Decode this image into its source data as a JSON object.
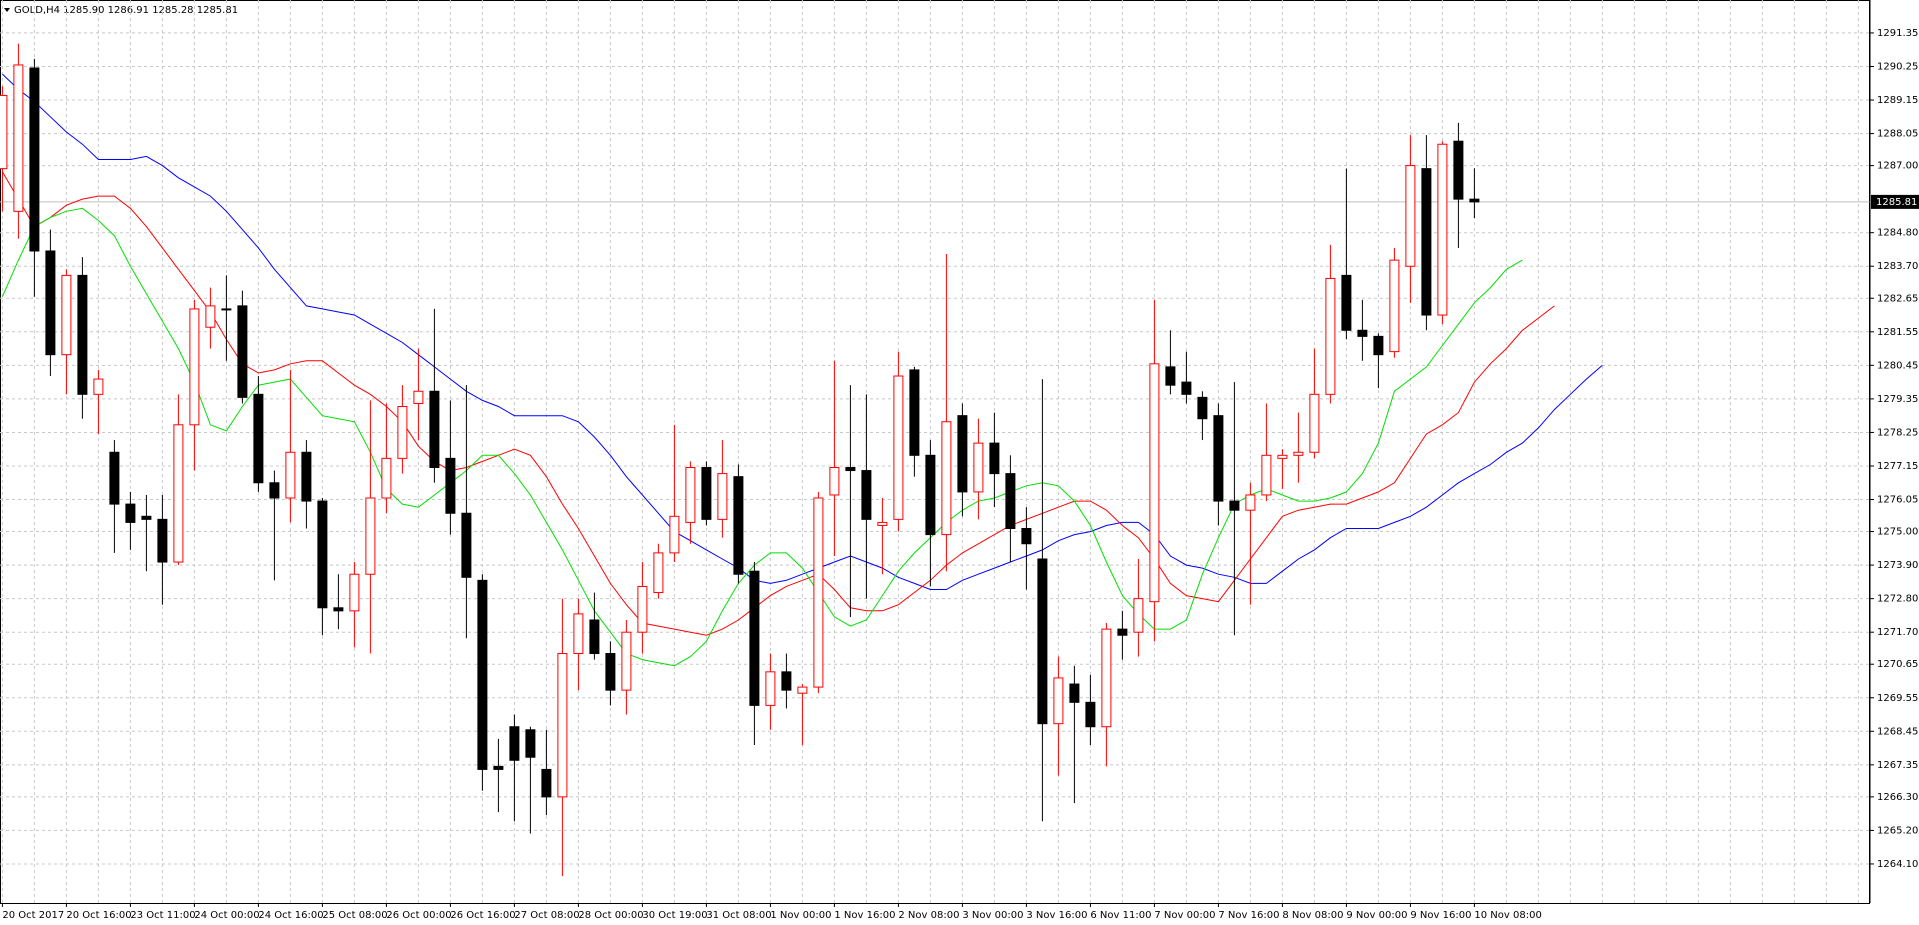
{
  "chart_data": {
    "type": "candlestick",
    "title": "GOLD,H4 1285.90 1286.91 1285.28 1285.81",
    "categories": [
      "20 Oct 2017",
      null,
      null,
      null,
      "20 Oct 16:00",
      null,
      null,
      null,
      "23 Oct 11:00",
      null,
      null,
      null,
      "24 Oct 00:00",
      null,
      null,
      null,
      "24 Oct 16:00",
      null,
      null,
      null,
      "25 Oct 08:00",
      null,
      null,
      null,
      "26 Oct 00:00",
      null,
      null,
      null,
      "26 Oct 16:00",
      null,
      null,
      null,
      "27 Oct 08:00",
      null,
      null,
      null,
      "28 Oct 00:00",
      null,
      null,
      null,
      "30 Oct 19:00",
      null,
      null,
      null,
      "31 Oct 08:00",
      null,
      null,
      null,
      "1 Nov 00:00",
      null,
      null,
      null,
      "1 Nov 16:00",
      null,
      null,
      null,
      "2 Nov 08:00",
      null,
      null,
      null,
      "3 Nov 00:00",
      null,
      null,
      null,
      "3 Nov 16:00",
      null,
      null,
      null,
      "6 Nov 11:00",
      null,
      null,
      null,
      "7 Nov 00:00",
      null,
      null,
      null,
      "7 Nov 16:00",
      null,
      null,
      null,
      "8 Nov 08:00",
      null,
      null,
      null,
      "9 Nov 00:00",
      null,
      null,
      null,
      "9 Nov 16:00",
      null,
      null,
      null,
      "10 Nov 08:00",
      null,
      null,
      null,
      null,
      null,
      null,
      null,
      null
    ],
    "open": [
      1286.9,
      1285.5,
      1290.2,
      1284.2,
      1280.8,
      1283.4,
      1279.5,
      1277.6,
      1275.9,
      1275.5,
      1275.4,
      1274.0,
      1278.5,
      1281.7,
      1282.3,
      1282.4,
      1279.5,
      1276.6,
      1276.1,
      1277.6,
      1276.0,
      1272.5,
      1272.4,
      1273.6,
      1276.1,
      1277.4,
      1279.2,
      1279.6,
      1277.4,
      1275.6,
      1273.4,
      1267.3,
      1268.6,
      1268.5,
      1267.2,
      1266.3,
      1271.0,
      1272.1,
      1271.0,
      1269.8,
      1271.7,
      1273.0,
      1274.3,
      1275.3,
      1277.1,
      1275.4,
      1276.8,
      1273.7,
      1269.3,
      1270.4,
      1269.7,
      1269.9,
      1276.2,
      1277.1,
      1277.0,
      1275.2,
      1275.4,
      1280.3,
      1277.5,
      1274.9,
      1278.8,
      1276.3,
      1277.9,
      1276.9,
      1275.1,
      1274.1,
      1268.7,
      1270.0,
      1269.4,
      1268.6,
      1271.8,
      1271.7,
      1272.7,
      1280.4,
      1279.9,
      1279.4,
      1278.8,
      1276.0,
      1275.7,
      1276.2,
      1277.4,
      1277.5,
      1277.6,
      1279.5,
      1283.4,
      1281.6,
      1281.4,
      1280.9,
      1283.7,
      1286.9,
      1282.1,
      1287.8,
      1285.9,
      null,
      null,
      null,
      null,
      null,
      null,
      null,
      null
    ],
    "high": [
      1289.6,
      1291.0,
      1290.5,
      1284.9,
      1283.6,
      1284.0,
      1280.3,
      1278.0,
      1276.3,
      1276.2,
      1276.2,
      1279.5,
      1282.6,
      1283.0,
      1283.4,
      1282.9,
      1280.1,
      1277.0,
      1280.3,
      1278.0,
      1276.1,
      1273.6,
      1274.0,
      1279.3,
      1279.2,
      1279.8,
      1281.0,
      1282.3,
      1279.3,
      1279.8,
      1273.6,
      1268.2,
      1269.0,
      1268.6,
      1268.5,
      1272.8,
      1272.8,
      1273.0,
      1271.4,
      1272.1,
      1274.0,
      1274.6,
      1278.5,
      1277.3,
      1277.3,
      1278.0,
      1277.2,
      1274.0,
      1271.0,
      1271.0,
      1270.0,
      1276.3,
      1280.6,
      1279.8,
      1279.5,
      1276.1,
      1280.9,
      1280.4,
      1278.0,
      1284.1,
      1279.2,
      1278.7,
      1278.9,
      1277.5,
      1275.8,
      1280.0,
      1270.9,
      1270.6,
      1270.3,
      1272.0,
      1272.4,
      1274.1,
      1282.6,
      1281.6,
      1280.9,
      1279.6,
      1279.2,
      1279.9,
      1276.6,
      1279.2,
      1277.7,
      1278.9,
      1281.0,
      1284.4,
      1286.9,
      1282.6,
      1281.5,
      1284.3,
      1288.0,
      1288.0,
      1287.8,
      1288.4,
      1286.91,
      null,
      null,
      null,
      null,
      null,
      null,
      null,
      null
    ],
    "low": [
      1285.5,
      1284.6,
      1282.7,
      1280.1,
      1279.5,
      1278.7,
      1278.2,
      1274.3,
      1274.4,
      1273.7,
      1272.6,
      1273.9,
      1277.0,
      1281.0,
      1280.6,
      1279.2,
      1276.3,
      1273.4,
      1275.3,
      1275.1,
      1271.6,
      1271.8,
      1271.2,
      1271.0,
      1275.6,
      1276.9,
      1278.0,
      1276.6,
      1274.9,
      1271.5,
      1266.5,
      1265.8,
      1265.5,
      1265.1,
      1265.7,
      1263.7,
      1269.8,
      1270.8,
      1269.3,
      1269.0,
      1271.0,
      1272.8,
      1274.0,
      1274.6,
      1275.2,
      1274.8,
      1273.3,
      1268.0,
      1268.5,
      1269.2,
      1268.0,
      1269.7,
      1274.2,
      1272.2,
      1272.8,
      1273.6,
      1275.0,
      1276.8,
      1273.2,
      1273.7,
      1275.5,
      1275.4,
      1275.8,
      1274.0,
      1273.1,
      1265.5,
      1267.0,
      1266.1,
      1268.0,
      1267.3,
      1270.8,
      1270.9,
      1271.4,
      1279.5,
      1279.2,
      1278.0,
      1275.2,
      1271.6,
      1272.6,
      1276.0,
      1276.4,
      1276.6,
      1277.4,
      1279.2,
      1281.3,
      1280.6,
      1279.7,
      1280.7,
      1282.5,
      1281.6,
      1281.8,
      1284.3,
      1285.28,
      null,
      null,
      null,
      null,
      null,
      null,
      null,
      null
    ],
    "close": [
      1289.3,
      1290.3,
      1284.2,
      1280.8,
      1283.4,
      1279.5,
      1280.0,
      1275.9,
      1275.3,
      1275.4,
      1274.0,
      1278.5,
      1282.3,
      1282.4,
      1282.3,
      1279.4,
      1276.6,
      1276.1,
      1277.6,
      1276.0,
      1272.5,
      1272.4,
      1273.6,
      1276.1,
      1277.4,
      1279.1,
      1279.6,
      1277.1,
      1275.6,
      1273.5,
      1267.2,
      1267.2,
      1267.5,
      1267.6,
      1266.3,
      1271.0,
      1272.3,
      1271.0,
      1269.8,
      1271.7,
      1273.2,
      1274.3,
      1275.5,
      1277.1,
      1275.4,
      1276.9,
      1273.6,
      1269.3,
      1270.4,
      1269.8,
      1269.9,
      1276.1,
      1277.1,
      1277.0,
      1275.4,
      1275.3,
      1280.1,
      1277.5,
      1274.9,
      1278.6,
      1276.3,
      1277.9,
      1276.9,
      1275.1,
      1274.6,
      1268.7,
      1270.2,
      1269.4,
      1268.6,
      1271.8,
      1271.6,
      1272.8,
      1280.5,
      1279.8,
      1279.5,
      1278.7,
      1276.0,
      1275.7,
      1276.2,
      1277.5,
      1277.5,
      1277.6,
      1279.5,
      1283.3,
      1281.6,
      1281.4,
      1280.8,
      1283.9,
      1287.0,
      1282.1,
      1287.7,
      1285.9,
      1285.81,
      null,
      null,
      null,
      null,
      null,
      null,
      null,
      null
    ],
    "up_color": "#ff0000",
    "down_color": "#000000",
    "series": [
      {
        "color": "#0000ff",
        "values": [
          1290.0,
          1289.5,
          1289.1,
          1288.6,
          1288.1,
          1287.7,
          1287.2,
          1287.2,
          1287.2,
          1287.3,
          1287.0,
          1286.6,
          1286.3,
          1286.0,
          1285.5,
          1284.9,
          1284.3,
          1283.6,
          1283.0,
          1282.4,
          1282.3,
          1282.2,
          1282.1,
          1281.8,
          1281.5,
          1281.2,
          1280.8,
          1280.4,
          1280.0,
          1279.6,
          1279.3,
          1279.1,
          1278.8,
          1278.8,
          1278.8,
          1278.8,
          1278.6,
          1278.1,
          1277.5,
          1276.8,
          1276.2,
          1275.6,
          1275.0,
          1274.7,
          1274.4,
          1274.1,
          1273.8,
          1273.4,
          1273.3,
          1273.4,
          1273.6,
          1273.8,
          1274.0,
          1274.2,
          1274.0,
          1273.8,
          1273.5,
          1273.3,
          1273.1,
          1273.1,
          1273.4,
          1273.6,
          1273.8,
          1274.0,
          1274.2,
          1274.4,
          1274.7,
          1274.9,
          1275.0,
          1275.2,
          1275.3,
          1275.3,
          1274.9,
          1274.2,
          1273.9,
          1273.8,
          1273.6,
          1273.5,
          1273.3,
          1273.3,
          1273.7,
          1274.1,
          1274.4,
          1274.8,
          1275.1,
          1275.1,
          1275.1,
          1275.3,
          1275.5,
          1275.8,
          1276.2,
          1276.6,
          1276.9,
          1277.2,
          1277.6,
          1277.9,
          1278.4,
          1279.0,
          1279.5,
          1280.0,
          1280.45
        ]
      },
      {
        "color": "#ff0000",
        "values": [
          1286.8,
          1285.9,
          1285.0,
          1285.3,
          1285.7,
          1285.9,
          1286.0,
          1286.0,
          1285.6,
          1285.0,
          1284.3,
          1283.6,
          1282.9,
          1282.2,
          1281.3,
          1280.5,
          1280.2,
          1280.3,
          1280.5,
          1280.6,
          1280.6,
          1280.2,
          1279.8,
          1279.5,
          1279.1,
          1278.6,
          1277.8,
          1277.3,
          1277.0,
          1277.1,
          1277.3,
          1277.5,
          1277.7,
          1277.5,
          1276.8,
          1275.9,
          1275.1,
          1274.2,
          1273.3,
          1272.6,
          1272.0,
          1271.9,
          1271.8,
          1271.7,
          1271.6,
          1271.8,
          1272.1,
          1272.5,
          1272.9,
          1273.2,
          1273.4,
          1273.6,
          1273.1,
          1272.5,
          1272.4,
          1272.4,
          1272.6,
          1273.0,
          1273.4,
          1273.9,
          1274.3,
          1274.6,
          1274.9,
          1275.2,
          1275.4,
          1275.6,
          1275.8,
          1276.0,
          1276.0,
          1275.7,
          1275.2,
          1274.8,
          1274.1,
          1273.3,
          1272.9,
          1272.8,
          1272.7,
          1273.4,
          1274.1,
          1274.8,
          1275.5,
          1275.7,
          1275.8,
          1275.9,
          1275.9,
          1276.1,
          1276.3,
          1276.6,
          1277.4,
          1278.2,
          1278.5,
          1278.9,
          1279.9,
          1280.5,
          1281.0,
          1281.6,
          1282.0,
          1282.4,
          null,
          null,
          null
        ]
      },
      {
        "color": "#00e000",
        "values": [
          1282.7,
          1283.9,
          1285.0,
          1285.3,
          1285.5,
          1285.6,
          1285.2,
          1284.7,
          1283.7,
          1282.8,
          1281.9,
          1281.0,
          1279.9,
          1278.5,
          1278.3,
          1279.1,
          1279.8,
          1279.9,
          1280.0,
          1279.4,
          1278.8,
          1278.7,
          1278.6,
          1277.6,
          1276.4,
          1275.9,
          1275.8,
          1276.2,
          1276.6,
          1277.0,
          1277.5,
          1277.5,
          1276.9,
          1276.2,
          1275.3,
          1274.4,
          1273.4,
          1272.4,
          1271.7,
          1271.0,
          1270.8,
          1270.7,
          1270.6,
          1270.9,
          1271.4,
          1272.4,
          1273.3,
          1273.9,
          1274.3,
          1274.3,
          1273.8,
          1273.0,
          1272.2,
          1271.9,
          1272.1,
          1272.9,
          1273.7,
          1274.3,
          1274.8,
          1275.3,
          1275.7,
          1276.0,
          1276.1,
          1276.3,
          1276.5,
          1276.6,
          1276.5,
          1276.0,
          1275.2,
          1274.0,
          1272.9,
          1272.3,
          1271.8,
          1271.8,
          1272.1,
          1273.6,
          1274.8,
          1275.9,
          1276.2,
          1276.4,
          1276.2,
          1276.0,
          1276.0,
          1276.1,
          1276.3,
          1276.9,
          1277.9,
          1279.6,
          1280.0,
          1280.4,
          1281.1,
          1281.8,
          1282.5,
          1283.0,
          1283.6,
          1283.9,
          null,
          null,
          null,
          null,
          null
        ]
      }
    ],
    "current_price": 1285.81,
    "ylim": [
      1262.82,
      1292.43
    ],
    "yticks": [
      {
        "value": 1264.1,
        "label": "1264.10"
      },
      {
        "value": 1265.2,
        "label": "1265.20"
      },
      {
        "value": 1266.3,
        "label": "1266.30"
      },
      1267.35,
      1268.45,
      1269.55,
      1270.65,
      {
        "value": 1271.7,
        "label": "1271.70"
      },
      {
        "value": 1272.8,
        "label": "1272.80"
      },
      {
        "value": 1273.9,
        "label": "1273.90"
      },
      {
        "value": 1275,
        "label": "1275.00"
      },
      1276.05,
      1277.15,
      1278.25,
      1279.35,
      1280.45,
      1281.55,
      1282.65,
      {
        "value": 1283.7,
        "label": "1283.70"
      },
      {
        "value": 1284.8,
        "label": "1284.80"
      },
      {
        "value": 1287,
        "label": "1287.00"
      },
      1288.05,
      1289.15,
      1290.25,
      1291.35
    ],
    "grid": true
  }
}
